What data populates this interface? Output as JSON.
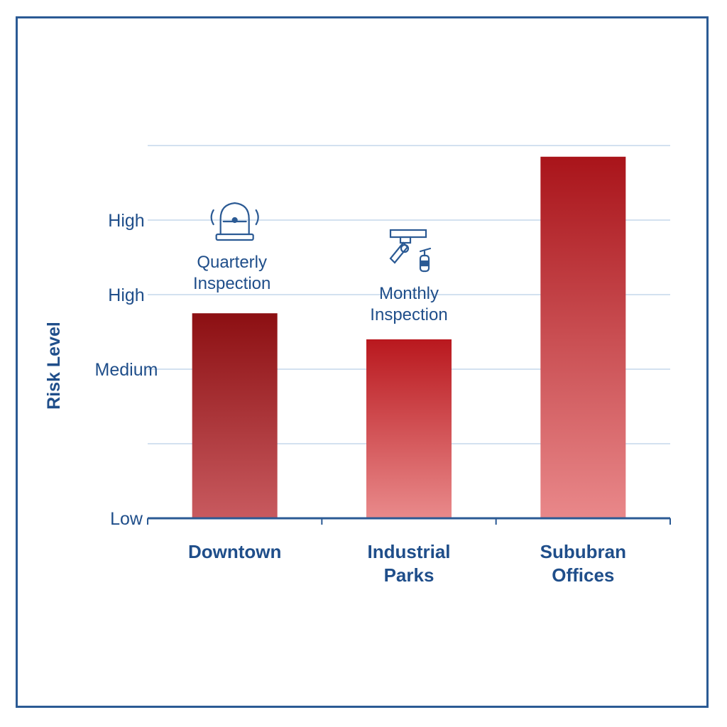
{
  "chart_data": {
    "type": "bar",
    "categories": [
      "Downtown",
      "Industrial Parks",
      "Sububran Offices"
    ],
    "values": [
      2.75,
      2.4,
      4.85
    ],
    "ylabel": "Risk Level",
    "ylim": [
      0,
      5
    ],
    "y_ticks": [
      {
        "value": 0,
        "label": "Low"
      },
      {
        "value": 1,
        "label": ""
      },
      {
        "value": 2,
        "label": "Medium"
      },
      {
        "value": 3,
        "label": "High"
      },
      {
        "value": 4,
        "label": "High"
      },
      {
        "value": 5,
        "label": ""
      }
    ],
    "grid": true,
    "bar_colors": [
      {
        "top": "#8c0f12",
        "bottom": "#c85a5f"
      },
      {
        "top": "#b9181e",
        "bottom": "#e98a8b"
      },
      {
        "top": "#a9141a",
        "bottom": "#e9888a"
      }
    ],
    "annotations": [
      {
        "category": "Downtown",
        "lines": [
          "Quarterly",
          "Inspection"
        ],
        "icon": "alarm-bell-icon"
      },
      {
        "category": "Industrial Parks",
        "lines": [
          "Monthly",
          "Inspection"
        ],
        "icon": "sprinkler-extinguisher-icon"
      }
    ]
  },
  "colors": {
    "axis": "#2b5a94",
    "grid": "#d3e1f0",
    "text": "#1f4e8a"
  }
}
